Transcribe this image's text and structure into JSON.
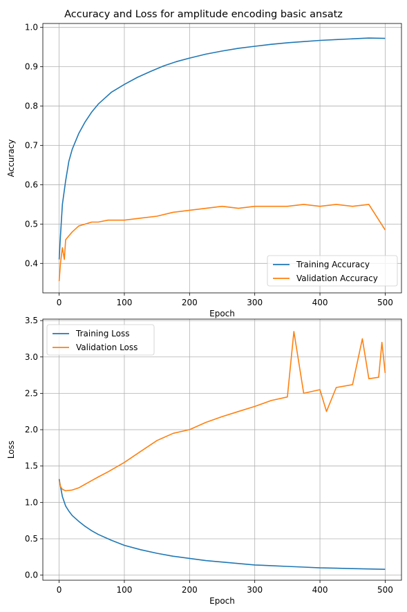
{
  "title": "Accuracy and Loss for amplitude encoding basic ansatz",
  "colors": {
    "series1": "#1f77b4",
    "series2": "#ff7f0e",
    "grid": "#b0b0b0"
  },
  "chart_data": [
    {
      "type": "line",
      "xlabel": "Epoch",
      "ylabel": "Accuracy",
      "xlim": [
        -25,
        525
      ],
      "ylim": [
        0.325,
        1.01
      ],
      "xticks": [
        0,
        100,
        200,
        300,
        400,
        500
      ],
      "yticks": [
        0.4,
        0.5,
        0.6,
        0.7,
        0.8,
        0.9,
        1.0
      ],
      "xtick_labels": [
        "0",
        "100",
        "200",
        "300",
        "400",
        "500"
      ],
      "ytick_labels": [
        "0.4",
        "0.5",
        "0.6",
        "0.7",
        "0.8",
        "0.9",
        "1.0"
      ],
      "grid": true,
      "legend_position": "lower-right",
      "series": [
        {
          "name": "Training Accuracy",
          "x": [
            0,
            2,
            5,
            10,
            15,
            20,
            25,
            30,
            40,
            50,
            60,
            70,
            80,
            90,
            100,
            120,
            140,
            160,
            180,
            200,
            225,
            250,
            275,
            300,
            325,
            350,
            375,
            400,
            425,
            450,
            475,
            500
          ],
          "y": [
            0.41,
            0.47,
            0.55,
            0.61,
            0.66,
            0.69,
            0.71,
            0.73,
            0.76,
            0.785,
            0.805,
            0.82,
            0.835,
            0.845,
            0.855,
            0.873,
            0.888,
            0.902,
            0.913,
            0.922,
            0.932,
            0.94,
            0.947,
            0.952,
            0.957,
            0.961,
            0.964,
            0.967,
            0.969,
            0.971,
            0.973,
            0.972
          ]
        },
        {
          "name": "Validation Accuracy",
          "x": [
            0,
            2,
            5,
            8,
            10,
            15,
            20,
            30,
            40,
            50,
            60,
            75,
            100,
            125,
            150,
            175,
            200,
            225,
            250,
            275,
            300,
            325,
            350,
            375,
            400,
            425,
            450,
            475,
            500
          ],
          "y": [
            0.355,
            0.4,
            0.44,
            0.41,
            0.46,
            0.47,
            0.48,
            0.495,
            0.5,
            0.505,
            0.505,
            0.51,
            0.51,
            0.515,
            0.52,
            0.53,
            0.535,
            0.54,
            0.545,
            0.54,
            0.545,
            0.545,
            0.545,
            0.55,
            0.545,
            0.55,
            0.545,
            0.55,
            0.485
          ]
        }
      ]
    },
    {
      "type": "line",
      "xlabel": "Epoch",
      "ylabel": "Loss",
      "xlim": [
        -25,
        525
      ],
      "ylim": [
        -0.07,
        3.52
      ],
      "xticks": [
        0,
        100,
        200,
        300,
        400,
        500
      ],
      "yticks": [
        0.0,
        0.5,
        1.0,
        1.5,
        2.0,
        2.5,
        3.0,
        3.5
      ],
      "xtick_labels": [
        "0",
        "100",
        "200",
        "300",
        "400",
        "500"
      ],
      "ytick_labels": [
        "0.0",
        "0.5",
        "1.0",
        "1.5",
        "2.0",
        "2.5",
        "3.0",
        "3.5"
      ],
      "grid": true,
      "legend_position": "upper-left",
      "series": [
        {
          "name": "Training Loss",
          "x": [
            0,
            2,
            5,
            10,
            15,
            20,
            30,
            40,
            50,
            60,
            80,
            100,
            125,
            150,
            175,
            200,
            225,
            250,
            275,
            300,
            325,
            350,
            375,
            400,
            425,
            450,
            475,
            500
          ],
          "y": [
            1.32,
            1.22,
            1.08,
            0.95,
            0.88,
            0.82,
            0.74,
            0.67,
            0.61,
            0.56,
            0.48,
            0.41,
            0.35,
            0.3,
            0.26,
            0.23,
            0.2,
            0.18,
            0.16,
            0.14,
            0.13,
            0.12,
            0.11,
            0.1,
            0.095,
            0.09,
            0.085,
            0.08
          ]
        },
        {
          "name": "Validation Loss",
          "x": [
            0,
            2,
            5,
            10,
            20,
            30,
            40,
            50,
            60,
            75,
            100,
            125,
            150,
            175,
            200,
            225,
            250,
            275,
            300,
            325,
            350,
            360,
            375,
            400,
            410,
            425,
            450,
            465,
            475,
            490,
            495,
            500
          ],
          "y": [
            1.3,
            1.22,
            1.18,
            1.16,
            1.17,
            1.2,
            1.25,
            1.3,
            1.35,
            1.42,
            1.55,
            1.7,
            1.85,
            1.95,
            2.0,
            2.1,
            2.18,
            2.25,
            2.32,
            2.4,
            2.45,
            3.35,
            2.5,
            2.55,
            2.25,
            2.58,
            2.62,
            3.25,
            2.7,
            2.72,
            3.2,
            2.78
          ]
        }
      ]
    }
  ]
}
